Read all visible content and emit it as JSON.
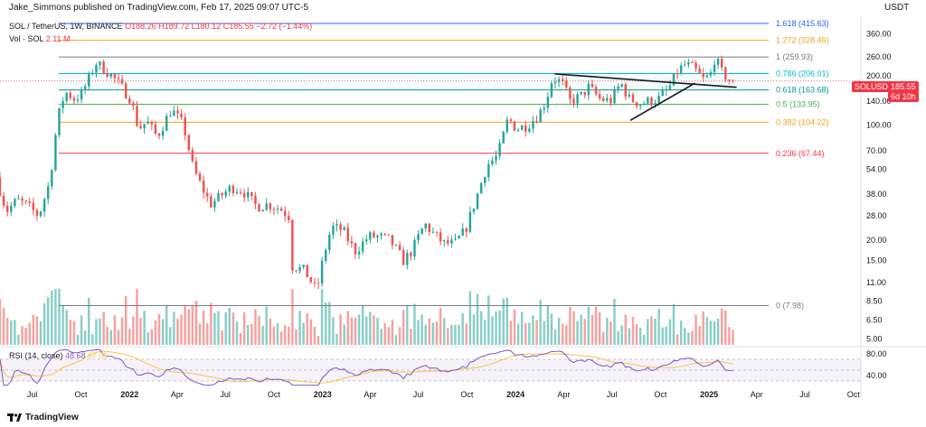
{
  "header": {
    "publisher": "Jake_Simmons published on TradingView.com, Feb 17, 2025 09:07 UTC-5",
    "currency": "USDT"
  },
  "legend": {
    "symbol": "SOL / TetherUS, 1W, BINANCE",
    "open": "O188.26",
    "high": "H189.72",
    "low": "L180.12",
    "close": "C185.55",
    "change": "−2.72 (−1.44%)",
    "volume_label": "Vol · SOL",
    "volume_value": "2.11 M"
  },
  "price_tag": {
    "symbol": "SOLUSDT",
    "price": "185.55",
    "countdown": "6d 10h",
    "color": "#f23645"
  },
  "rsi": {
    "label": "RSI (14, close)",
    "value1": "48.68",
    "value2": "67.09",
    "axis_ticks": [
      "80.00",
      "40.00"
    ]
  },
  "footer": {
    "brand": "TradingView"
  },
  "colors": {
    "up": "#26a69a",
    "down": "#ef5350",
    "rsi_line": "#7e57c2",
    "rsi_ma": "#f7c548"
  },
  "chart_data": {
    "type": "candlestick",
    "title": "SOL / TetherUS, 1W, BINANCE",
    "y_scale": "log",
    "y_ticks": [
      360,
      260,
      200,
      140,
      100,
      70,
      54,
      38,
      28,
      20,
      15,
      11,
      8.5,
      6.5,
      5
    ],
    "y_tick_labels": [
      "360.00",
      "260.00",
      "200.00",
      "140.00",
      "100.00",
      "70.00",
      "54.00",
      "38.00",
      "28.00",
      "20.00",
      "15.00",
      "11.00",
      "8.50",
      "6.50",
      "5.00"
    ],
    "x_tick_labels": [
      "Jul",
      "Oct",
      "2022",
      "Apr",
      "Jul",
      "Oct",
      "2023",
      "Apr",
      "Jul",
      "Oct",
      "2024",
      "Apr",
      "Jul",
      "Oct",
      "2025",
      "Apr",
      "Jul",
      "Oct"
    ],
    "x_range": [
      "2021-05-01",
      "2025-10-15"
    ],
    "fib_levels": [
      {
        "label": "1.618 (415.63)",
        "value": 415.63,
        "color": "#2962ff"
      },
      {
        "label": "1.272 (328.46)",
        "value": 328.46,
        "color": "#f7a21b"
      },
      {
        "label": "1 (259.93)",
        "value": 259.93,
        "color": "#787b86"
      },
      {
        "label": "0.786 (206.01)",
        "value": 206.01,
        "color": "#00bcd4"
      },
      {
        "label": "0.618 (163.68)",
        "value": 163.68,
        "color": "#089981"
      },
      {
        "label": "0.5 (133.95)",
        "value": 133.95,
        "color": "#4caf50"
      },
      {
        "label": "0.382 (104.22)",
        "value": 104.22,
        "color": "#f7a21b"
      },
      {
        "label": "0.236 (67.44)",
        "value": 67.44,
        "color": "#f23645"
      },
      {
        "label": "0 (7.98)",
        "value": 7.98,
        "color": "#787b86"
      }
    ],
    "price_path": [
      [
        "2021-05-01",
        48
      ],
      [
        "2021-05-20",
        30
      ],
      [
        "2021-06-10",
        35
      ],
      [
        "2021-07-01",
        32
      ],
      [
        "2021-07-20",
        28
      ],
      [
        "2021-08-10",
        45
      ],
      [
        "2021-08-25",
        110
      ],
      [
        "2021-09-08",
        160
      ],
      [
        "2021-09-25",
        145
      ],
      [
        "2021-10-10",
        155
      ],
      [
        "2021-11-05",
        240
      ],
      [
        "2021-11-25",
        215
      ],
      [
        "2021-12-15",
        185
      ],
      [
        "2022-01-10",
        145
      ],
      [
        "2022-01-25",
        95
      ],
      [
        "2022-02-10",
        105
      ],
      [
        "2022-03-01",
        85
      ],
      [
        "2022-03-28",
        125
      ],
      [
        "2022-04-20",
        100
      ],
      [
        "2022-05-08",
        55
      ],
      [
        "2022-05-20",
        45
      ],
      [
        "2022-06-10",
        33
      ],
      [
        "2022-06-25",
        36
      ],
      [
        "2022-07-20",
        42
      ],
      [
        "2022-08-10",
        40
      ],
      [
        "2022-09-05",
        32
      ],
      [
        "2022-09-28",
        33
      ],
      [
        "2022-10-20",
        31
      ],
      [
        "2022-11-05",
        28
      ],
      [
        "2022-11-10",
        14
      ],
      [
        "2022-12-05",
        13
      ],
      [
        "2022-12-28",
        9.8
      ],
      [
        "2023-01-10",
        16
      ],
      [
        "2023-01-25",
        24
      ],
      [
        "2023-02-15",
        23
      ],
      [
        "2023-03-10",
        17
      ],
      [
        "2023-04-05",
        21
      ],
      [
        "2023-04-25",
        21
      ],
      [
        "2023-05-15",
        20
      ],
      [
        "2023-06-10",
        15
      ],
      [
        "2023-06-25",
        17
      ],
      [
        "2023-07-20",
        25
      ],
      [
        "2023-08-05",
        22
      ],
      [
        "2023-08-25",
        19
      ],
      [
        "2023-09-15",
        19
      ],
      [
        "2023-10-05",
        23
      ],
      [
        "2023-10-28",
        38
      ],
      [
        "2023-11-15",
        57
      ],
      [
        "2023-12-05",
        65
      ],
      [
        "2023-12-25",
        110
      ],
      [
        "2024-01-10",
        95
      ],
      [
        "2024-01-30",
        100
      ],
      [
        "2024-02-20",
        115
      ],
      [
        "2024-03-05",
        140
      ],
      [
        "2024-03-18",
        195
      ],
      [
        "2024-04-05",
        180
      ],
      [
        "2024-04-20",
        140
      ],
      [
        "2024-05-10",
        150
      ],
      [
        "2024-05-25",
        170
      ],
      [
        "2024-06-15",
        145
      ],
      [
        "2024-07-05",
        140
      ],
      [
        "2024-07-25",
        180
      ],
      [
        "2024-08-10",
        145
      ],
      [
        "2024-08-30",
        135
      ],
      [
        "2024-09-15",
        140
      ],
      [
        "2024-10-05",
        145
      ],
      [
        "2024-10-25",
        170
      ],
      [
        "2024-11-10",
        215
      ],
      [
        "2024-11-25",
        235
      ],
      [
        "2024-12-10",
        220
      ],
      [
        "2024-12-28",
        190
      ],
      [
        "2025-01-10",
        200
      ],
      [
        "2025-01-19",
        260
      ],
      [
        "2025-02-01",
        210
      ],
      [
        "2025-02-17",
        185.55
      ]
    ],
    "trendlines": [
      {
        "from": [
          "2024-03-15",
          205
        ],
        "to": [
          "2025-02-22",
          170
        ]
      },
      {
        "from": [
          "2024-08-05",
          107
        ],
        "to": [
          "2024-12-05",
          180
        ]
      }
    ],
    "rsi_range": [
      20,
      90
    ]
  }
}
